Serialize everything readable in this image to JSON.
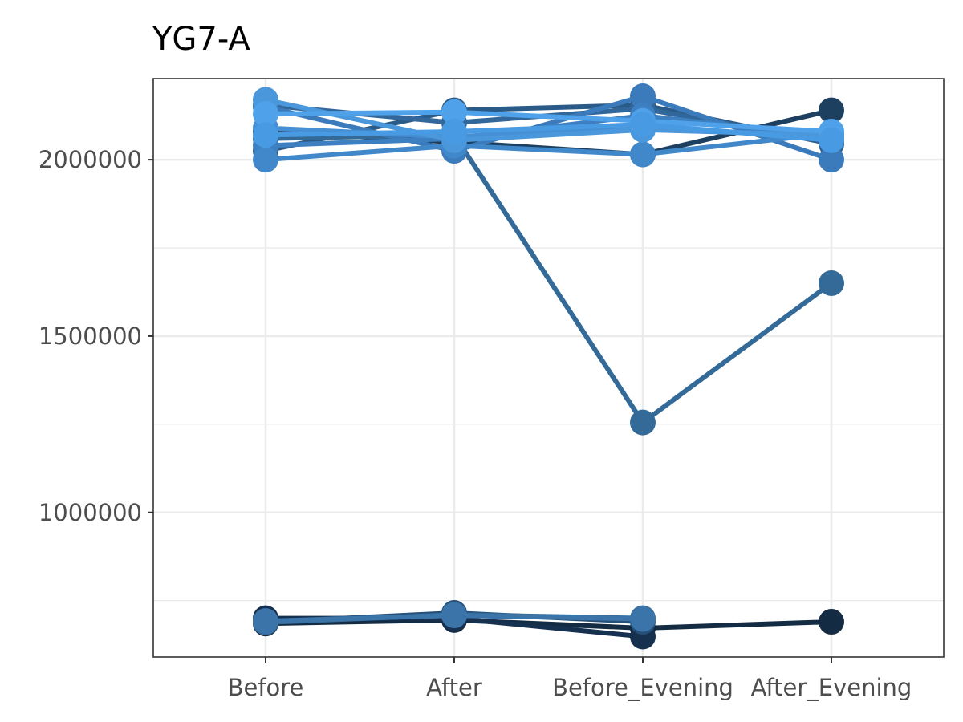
{
  "chart_data": {
    "type": "line",
    "title": "YG7-A",
    "xlabel": "",
    "ylabel": "",
    "categories": [
      "Before",
      "After",
      "Before_Evening",
      "After_Evening"
    ],
    "y_ticks": [
      1000000,
      1500000,
      2000000
    ],
    "y_tick_labels": [
      "1000000",
      "1500000",
      "2000000"
    ],
    "ylim": [
      590000,
      2230000
    ],
    "grid": true,
    "legend": "none",
    "series": [
      {
        "color": "#132b43",
        "values": [
          685000,
          695000,
          672000,
          690000
        ]
      },
      {
        "color": "#163150",
        "values": [
          700000,
          700000,
          648000,
          null
        ]
      },
      {
        "color": "#25507a",
        "values": [
          690000,
          715000,
          690000,
          null
        ]
      },
      {
        "color": "#336a98",
        "values": [
          688000,
          710000,
          700000,
          null
        ]
      },
      {
        "color": "#3a74a8",
        "values": [
          692000,
          708000,
          698000,
          null
        ]
      },
      {
        "color": "#1d3f60",
        "values": [
          2080000,
          2050000,
          2015000,
          2140000
        ]
      },
      {
        "color": "#2a5a87",
        "values": [
          2025000,
          2140000,
          2155000,
          2045000
        ]
      },
      {
        "color": "#31679a",
        "values": [
          2155000,
          2105000,
          2145000,
          2050000
        ]
      },
      {
        "color": "#336a98",
        "values": [
          2060000,
          2070000,
          1255000,
          1650000
        ]
      },
      {
        "color": "#3b7bbb",
        "values": [
          2150000,
          2025000,
          2180000,
          2000000
        ]
      },
      {
        "color": "#3d80c2",
        "values": [
          2040000,
          2060000,
          2125000,
          2065000
        ]
      },
      {
        "color": "#4188cb",
        "values": [
          2000000,
          2040000,
          2015000,
          2075000
        ]
      },
      {
        "color": "#458fd4",
        "values": [
          2090000,
          2065000,
          2095000,
          2060000
        ]
      },
      {
        "color": "#4a97dc",
        "values": [
          2170000,
          2055000,
          2085000,
          2070000
        ]
      },
      {
        "color": "#4fa2ea",
        "values": [
          2130000,
          2135000,
          2110000,
          2080000
        ]
      },
      {
        "color": "#489ae2",
        "values": [
          2070000,
          2080000,
          2100000,
          2055000
        ]
      }
    ]
  }
}
